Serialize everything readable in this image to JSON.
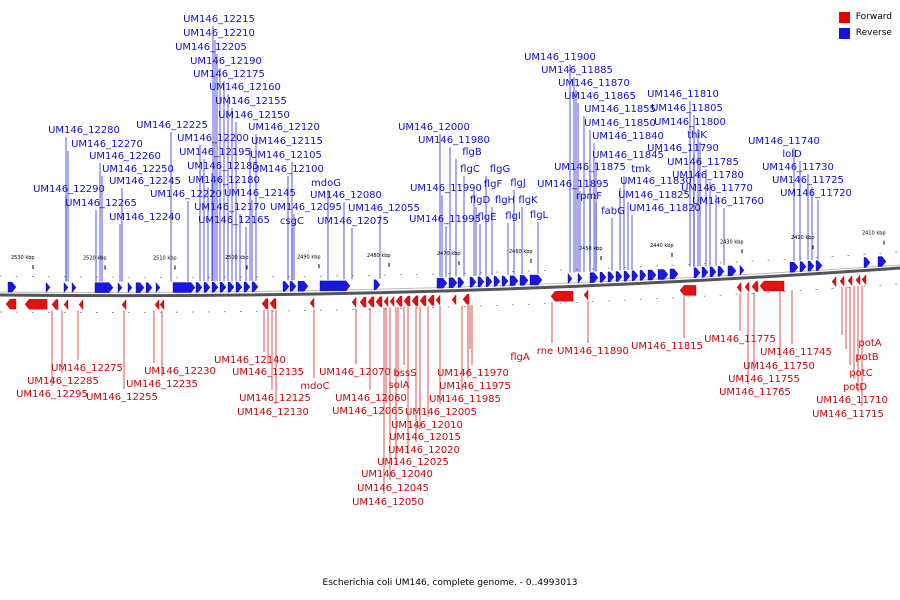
{
  "legend": {
    "items": [
      {
        "label": "Forward",
        "color": "#e80000"
      },
      {
        "label": "Reverse",
        "color": "#1414e6"
      }
    ]
  },
  "caption": "Escherichia coli UM146, complete genome. - 0..4993013",
  "colors": {
    "forward_gene": "#e41010",
    "reverse_gene": "#1818e0",
    "forward_label": "#c80808",
    "reverse_label": "#1010c8"
  },
  "ticks": [
    "2530 kbp",
    "2520 kbp",
    "2510 kbp",
    "2500 kbp",
    "2490 kbp",
    "2480 kbp",
    "2470 kbp",
    "2460 kbp",
    "2450 kbp",
    "2440 kbp",
    "2430 kbp",
    "2420 kbp",
    "2410 kbp"
  ],
  "reverse_labels": [
    "UM146_12215",
    "UM146_12210",
    "UM146_12205",
    "UM146_12190",
    "UM146_12175",
    "UM146_12160",
    "UM146_12155",
    "UM146_12150",
    "UM146_12225",
    "UM146_12200",
    "UM146_12195",
    "UM146_12185",
    "UM146_12180",
    "UM146_12220",
    "UM146_12170",
    "UM146_12165",
    "UM146_12120",
    "UM146_12115",
    "UM146_12105",
    "UM146_12100",
    "UM146_12145",
    "UM146_12095",
    "csgC",
    "mdoG",
    "UM146_12080",
    "UM146_12075",
    "UM146_12055",
    "UM146_12280",
    "UM146_12270",
    "UM146_12260",
    "UM146_12250",
    "UM146_12245",
    "UM146_12290",
    "UM146_12265",
    "UM146_12240",
    "UM146_12000",
    "UM146_11980",
    "flgB",
    "flgC",
    "flgG",
    "flgF",
    "flgJ",
    "UM146_11990",
    "flgD",
    "flgH",
    "flgK",
    "flgE",
    "flgI",
    "UM146_11995",
    "flgL",
    "UM146_11900",
    "UM146_11885",
    "UM146_11870",
    "UM146_11865",
    "UM146_11855",
    "UM146_11850",
    "UM146_11840",
    "UM146_11845",
    "UM146_11875",
    "tmk",
    "UM146_11895",
    "rpmF",
    "UM146_11830",
    "UM146_11825",
    "fabG",
    "UM146_11820",
    "UM146_11810",
    "UM146_11805",
    "UM146_11800",
    "thiK",
    "UM146_11790",
    "UM146_11785",
    "UM146_11780",
    "UM146_11770",
    "UM146_11760",
    "UM146_11740",
    "lolD",
    "UM146_11730",
    "UM146_11725",
    "UM146_11720"
  ],
  "forward_labels": [
    "UM146_12275",
    "UM146_12285",
    "UM146_12295",
    "UM146_12230",
    "UM146_12235",
    "UM146_12255",
    "UM146_12140",
    "UM146_12135",
    "mdoC",
    "UM146_12125",
    "UM146_12130",
    "UM146_12070",
    "bssS",
    "solA",
    "UM146_12060",
    "UM146_12065",
    "UM146_12005",
    "UM146_12010",
    "UM146_12015",
    "UM146_12020",
    "UM146_12025",
    "UM146_12040",
    "UM146_12045",
    "UM146_12050",
    "UM146_11970",
    "UM146_11975",
    "UM146_11985",
    "flgA",
    "rne",
    "UM146_11890",
    "UM146_11815",
    "UM146_11775",
    "UM146_11745",
    "UM146_11750",
    "UM146_11755",
    "UM146_11765",
    "potA",
    "potB",
    "potC",
    "potD",
    "UM146_11710",
    "UM146_11715"
  ]
}
